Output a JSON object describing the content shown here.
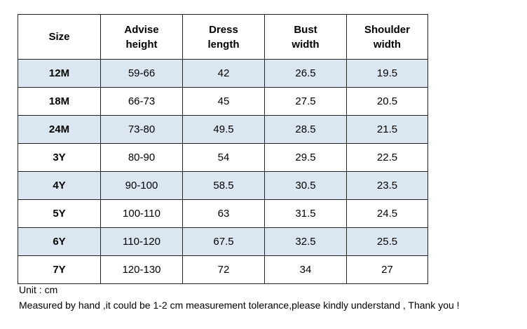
{
  "table": {
    "header": [
      [
        "Size"
      ],
      [
        "Advise",
        "height"
      ],
      [
        "Dress",
        "length"
      ],
      [
        "Bust",
        "width"
      ],
      [
        "Shoulder",
        "width"
      ]
    ],
    "rows": [
      [
        "12M",
        "59-66",
        "42",
        "26.5",
        "19.5"
      ],
      [
        "18M",
        "66-73",
        "45",
        "27.5",
        "20.5"
      ],
      [
        "24M",
        "73-80",
        "49.5",
        "28.5",
        "21.5"
      ],
      [
        "3Y",
        "80-90",
        "54",
        "29.5",
        "22.5"
      ],
      [
        "4Y",
        "90-100",
        "58.5",
        "30.5",
        "23.5"
      ],
      [
        "5Y",
        "100-110",
        "63",
        "31.5",
        "24.5"
      ],
      [
        "6Y",
        "110-120",
        "67.5",
        "32.5",
        "25.5"
      ],
      [
        "7Y",
        "120-130",
        "72",
        "34",
        "27"
      ]
    ]
  },
  "notes": [
    "Unit : cm",
    "Measured by hand ,it could be 1-2 cm measurement tolerance,please kindly understand , Thank you !"
  ]
}
